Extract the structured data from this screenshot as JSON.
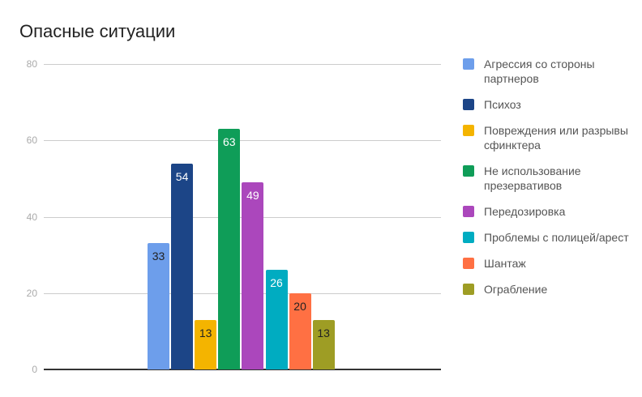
{
  "chart_data": {
    "type": "bar",
    "title": "Опасные ситуации",
    "xlabel": "",
    "ylabel": "",
    "ylim": [
      0,
      80
    ],
    "yticks": [
      0,
      20,
      40,
      60,
      80
    ],
    "grid": true,
    "legend_position": "right",
    "categories": [
      ""
    ],
    "series": [
      {
        "name": "Агрессия со стороны партнеров",
        "values": [
          33
        ],
        "color": "#6d9eeb",
        "label_color": "#222"
      },
      {
        "name": "Психоз",
        "values": [
          54
        ],
        "color": "#1c4587",
        "label_color": "#fff"
      },
      {
        "name": "Повреждения или разрывы сфинктера",
        "values": [
          13
        ],
        "color": "#f4b400",
        "label_color": "#222"
      },
      {
        "name": "Не использование презервативов",
        "values": [
          63
        ],
        "color": "#0f9d58",
        "label_color": "#fff"
      },
      {
        "name": "Передозировка",
        "values": [
          49
        ],
        "color": "#ab47bc",
        "label_color": "#fff"
      },
      {
        "name": "Проблемы с полицей/арест",
        "values": [
          26
        ],
        "color": "#00acc1",
        "label_color": "#fff"
      },
      {
        "name": "Шантаж",
        "values": [
          20
        ],
        "color": "#ff7043",
        "label_color": "#222"
      },
      {
        "name": "Ограбление",
        "values": [
          13
        ],
        "color": "#9e9d24",
        "label_color": "#222"
      }
    ]
  },
  "legend": {
    "items": [
      {
        "label": "Агрессия со стороны партнеров"
      },
      {
        "label": "Психоз"
      },
      {
        "label": "Повреждения или разрывы сфинктера"
      },
      {
        "label": "Не использование презервативов"
      },
      {
        "label": "Передозировка"
      },
      {
        "label": "Проблемы с полицей/арест"
      },
      {
        "label": "Шантаж"
      },
      {
        "label": "Ограбление"
      }
    ]
  }
}
